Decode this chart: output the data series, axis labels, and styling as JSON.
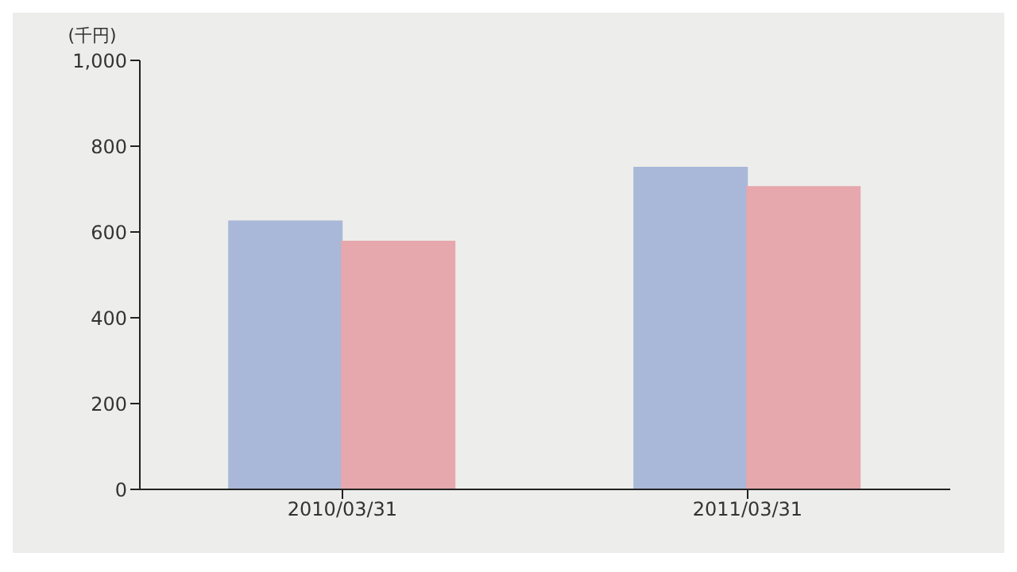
{
  "chart_data": {
    "type": "bar",
    "ylabel": "(千円)",
    "categories": [
      "2010/03/31",
      "2011/03/31"
    ],
    "series": [
      {
        "color": "#a9b8d8",
        "values": [
          625,
          750
        ]
      },
      {
        "color": "#e6a8ac",
        "values": [
          578,
          705
        ]
      }
    ],
    "ylim": [
      0,
      1000
    ],
    "yticks": [
      0,
      200,
      400,
      600,
      800,
      {
        "value": 1000,
        "label": "1,000"
      }
    ],
    "grid": false,
    "legend": false
  }
}
